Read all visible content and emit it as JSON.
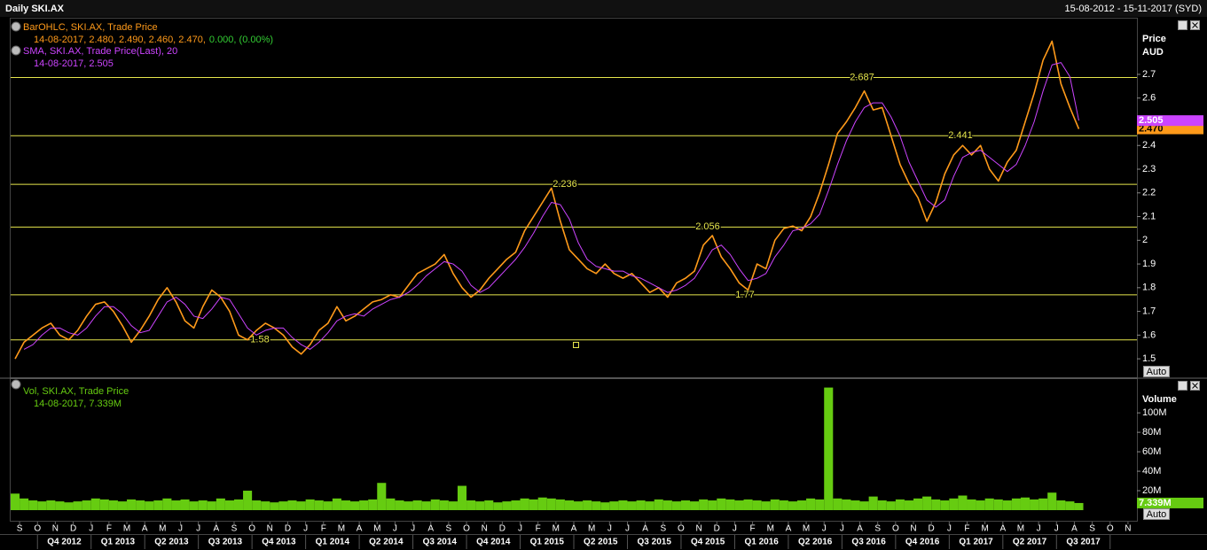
{
  "chart_data": [
    {
      "type": "line",
      "title": "Daily SKI.AX",
      "date_range": "15-08-2012 - 15-11-2017 (SYD)",
      "y_axis_label": "Price",
      "y_unit": "AUD",
      "autoscale": "Auto",
      "ylim": [
        1.422,
        2.939
      ],
      "yticks": [
        1.5,
        1.6,
        1.7,
        1.8,
        1.9,
        2,
        2.1,
        2.2,
        2.3,
        2.4,
        2.5,
        2.6,
        2.7
      ],
      "levels": [
        2.687,
        2.441,
        2.236,
        2.056,
        1.77,
        1.58
      ],
      "level_color": "#e6e64c",
      "series": [
        {
          "name": "BarOHLC, SKI.AX, Trade Price",
          "color": "#ff9a1a",
          "readout": "14-08-2017, 2.480, 2.490, 2.460, 2.470,",
          "change": "0.000, (0.00%)",
          "change_color": "#33cc33",
          "last_label": "2.470",
          "values": [
            1.5,
            1.57,
            1.6,
            1.63,
            1.65,
            1.6,
            1.58,
            1.62,
            1.68,
            1.73,
            1.74,
            1.7,
            1.64,
            1.57,
            1.62,
            1.68,
            1.75,
            1.8,
            1.74,
            1.66,
            1.63,
            1.72,
            1.79,
            1.76,
            1.7,
            1.6,
            1.58,
            1.62,
            1.65,
            1.63,
            1.6,
            1.55,
            1.52,
            1.56,
            1.62,
            1.65,
            1.72,
            1.66,
            1.68,
            1.71,
            1.74,
            1.75,
            1.77,
            1.76,
            1.81,
            1.86,
            1.88,
            1.9,
            1.94,
            1.86,
            1.8,
            1.76,
            1.79,
            1.84,
            1.88,
            1.92,
            1.95,
            2.04,
            2.1,
            2.16,
            2.22,
            2.08,
            1.96,
            1.92,
            1.88,
            1.86,
            1.9,
            1.86,
            1.84,
            1.86,
            1.82,
            1.78,
            1.8,
            1.76,
            1.82,
            1.84,
            1.87,
            1.98,
            2.02,
            1.93,
            1.88,
            1.82,
            1.79,
            1.9,
            1.88,
            2.0,
            2.05,
            2.06,
            2.04,
            2.1,
            2.2,
            2.32,
            2.45,
            2.5,
            2.56,
            2.63,
            2.55,
            2.56,
            2.44,
            2.32,
            2.24,
            2.18,
            2.08,
            2.16,
            2.28,
            2.36,
            2.4,
            2.36,
            2.4,
            2.3,
            2.25,
            2.33,
            2.38,
            2.5,
            2.62,
            2.76,
            2.84,
            2.66,
            2.56,
            2.47,
            null,
            null,
            null,
            null,
            null,
            null
          ]
        },
        {
          "name": "SMA, SKI.AX, Trade Price(Last),  20",
          "color": "#cc44ff",
          "readout": "14-08-2017, 2.505",
          "values": [
            null,
            1.54,
            1.56,
            1.6,
            1.63,
            1.63,
            1.61,
            1.6,
            1.63,
            1.68,
            1.72,
            1.72,
            1.69,
            1.64,
            1.61,
            1.62,
            1.68,
            1.74,
            1.76,
            1.73,
            1.68,
            1.67,
            1.71,
            1.76,
            1.75,
            1.69,
            1.63,
            1.6,
            1.62,
            1.63,
            1.63,
            1.59,
            1.56,
            1.54,
            1.57,
            1.61,
            1.66,
            1.68,
            1.69,
            1.68,
            1.71,
            1.73,
            1.75,
            1.76,
            1.78,
            1.81,
            1.85,
            1.88,
            1.91,
            1.9,
            1.87,
            1.81,
            1.78,
            1.8,
            1.84,
            1.88,
            1.92,
            1.97,
            2.03,
            2.1,
            2.16,
            2.15,
            2.09,
            1.99,
            1.92,
            1.89,
            1.88,
            1.87,
            1.87,
            1.85,
            1.84,
            1.82,
            1.8,
            1.78,
            1.79,
            1.81,
            1.84,
            1.9,
            1.96,
            1.98,
            1.94,
            1.88,
            1.83,
            1.84,
            1.86,
            1.93,
            1.98,
            2.04,
            2.05,
            2.07,
            2.11,
            2.21,
            2.32,
            2.42,
            2.5,
            2.56,
            2.58,
            2.58,
            2.52,
            2.44,
            2.33,
            2.25,
            2.17,
            2.14,
            2.17,
            2.27,
            2.35,
            2.37,
            2.38,
            2.35,
            2.32,
            2.29,
            2.32,
            2.4,
            2.5,
            2.63,
            2.74,
            2.75,
            2.69,
            2.505,
            null,
            null,
            null,
            null,
            null,
            null
          ]
        }
      ]
    },
    {
      "type": "bar",
      "y_axis_label": "Volume",
      "autoscale": "Auto",
      "ylim": [
        0,
        132000000
      ],
      "yticks": [
        {
          "value": 20000000,
          "label": "20M"
        },
        {
          "value": 40000000,
          "label": "40M"
        },
        {
          "value": 60000000,
          "label": "60M"
        },
        {
          "value": 80000000,
          "label": "80M"
        },
        {
          "value": 100000000,
          "label": "100M"
        }
      ],
      "categories": [
        null,
        "S",
        null,
        "O",
        null,
        "N",
        null,
        "D",
        null,
        "J",
        null,
        "F",
        null,
        "M",
        null,
        "A",
        null,
        "M",
        null,
        "J",
        null,
        "J",
        null,
        "A",
        null,
        "S",
        null,
        "O",
        null,
        "N",
        null,
        "D",
        null,
        "J",
        null,
        "F",
        null,
        "M",
        null,
        "A",
        null,
        "M",
        null,
        "J",
        null,
        "J",
        null,
        "A",
        null,
        "S",
        null,
        "O",
        null,
        "N",
        null,
        "D",
        null,
        "J",
        null,
        "F",
        null,
        "M",
        null,
        "A",
        null,
        "M",
        null,
        "J",
        null,
        "J",
        null,
        "A",
        null,
        "S",
        null,
        "O",
        null,
        "N",
        null,
        "D",
        null,
        "J",
        null,
        "F",
        null,
        "M",
        null,
        "A",
        null,
        "M",
        null,
        "J",
        null,
        "J",
        null,
        "A",
        null,
        "S",
        null,
        "O",
        null,
        "N",
        null,
        "D",
        null,
        "J",
        null,
        "F",
        null,
        "M",
        null,
        "A",
        null,
        "M",
        null,
        "J",
        null,
        "J",
        null,
        "A",
        null,
        "S",
        null,
        "O",
        null,
        "N"
      ],
      "quarters": [
        "Q4 2012",
        "Q1 2013",
        "Q2 2013",
        "Q3 2013",
        "Q4 2013",
        "Q1 2014",
        "Q2 2014",
        "Q3 2014",
        "Q4 2014",
        "Q1 2015",
        "Q2 2015",
        "Q3 2015",
        "Q4 2015",
        "Q1 2016",
        "Q2 2016",
        "Q3 2016",
        "Q4 2016",
        "Q1 2017",
        "Q2 2017",
        "Q3 2017"
      ],
      "series": [
        {
          "name": "Vol, SKI.AX, Trade Price",
          "color": "#66cc11",
          "readout": "14-08-2017, 7.339M",
          "last_label": "7.339M",
          "values": [
            17000000,
            12000000,
            10000000,
            9000000,
            10000000,
            9000000,
            8000000,
            9000000,
            10000000,
            12000000,
            11000000,
            10000000,
            9000000,
            11000000,
            10000000,
            9000000,
            10000000,
            12000000,
            10000000,
            11000000,
            9000000,
            10000000,
            9000000,
            12000000,
            10000000,
            11000000,
            20000000,
            10000000,
            9000000,
            8000000,
            9000000,
            10000000,
            9000000,
            11000000,
            10000000,
            9000000,
            12000000,
            10000000,
            9000000,
            10000000,
            11000000,
            28000000,
            12000000,
            10000000,
            9000000,
            10000000,
            9000000,
            11000000,
            10000000,
            9000000,
            25000000,
            10000000,
            9000000,
            10000000,
            8000000,
            9000000,
            10000000,
            12000000,
            11000000,
            13000000,
            12000000,
            11000000,
            10000000,
            9000000,
            10000000,
            9000000,
            8000000,
            9000000,
            10000000,
            9000000,
            10000000,
            9000000,
            11000000,
            10000000,
            9000000,
            10000000,
            9000000,
            11000000,
            10000000,
            12000000,
            11000000,
            10000000,
            11000000,
            10000000,
            9000000,
            11000000,
            10000000,
            9000000,
            10000000,
            12000000,
            11000000,
            126000000,
            12000000,
            11000000,
            10000000,
            9000000,
            14000000,
            10000000,
            9000000,
            11000000,
            10000000,
            12000000,
            14000000,
            11000000,
            10000000,
            12000000,
            15000000,
            11000000,
            10000000,
            12000000,
            11000000,
            10000000,
            12000000,
            13000000,
            11000000,
            12000000,
            18000000,
            10000000,
            9000000,
            7339000,
            null,
            null,
            null,
            null,
            null,
            null
          ]
        }
      ]
    }
  ]
}
